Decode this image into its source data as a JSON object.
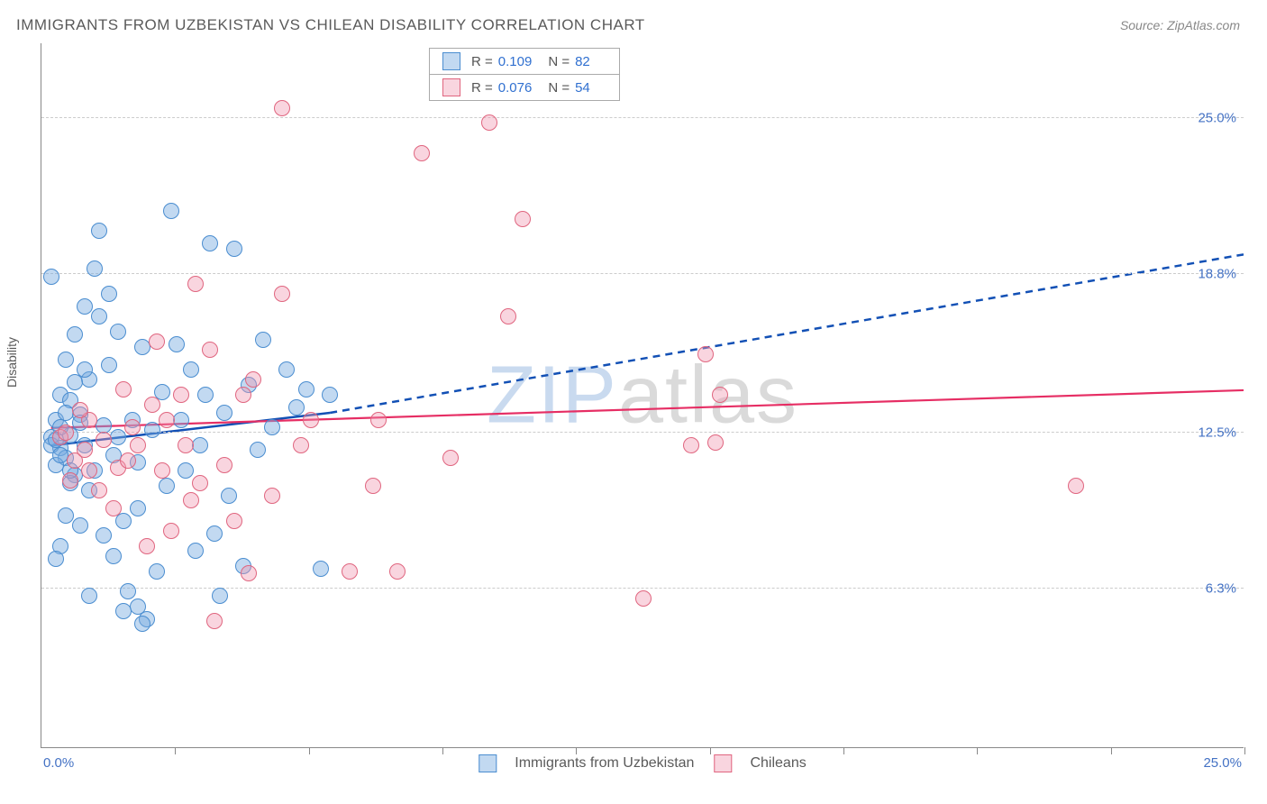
{
  "title": "IMMIGRANTS FROM UZBEKISTAN VS CHILEAN DISABILITY CORRELATION CHART",
  "source": "Source: ZipAtlas.com",
  "watermark_zip": "ZIP",
  "watermark_atlas": "atlas",
  "ylabel": "Disability",
  "chart": {
    "type": "scatter",
    "xlim": [
      0,
      25
    ],
    "ylim": [
      0,
      28
    ],
    "x_axis_min_label": "0.0%",
    "x_axis_max_label": "25.0%",
    "ytick_labels": [
      {
        "value": 6.3,
        "label": "6.3%"
      },
      {
        "value": 12.5,
        "label": "12.5%"
      },
      {
        "value": 18.8,
        "label": "18.8%"
      },
      {
        "value": 25.0,
        "label": "25.0%"
      }
    ],
    "xtick_positions": [
      2.78,
      5.56,
      8.33,
      11.11,
      13.89,
      16.67,
      19.44,
      22.22,
      25.0
    ],
    "background_color": "#ffffff",
    "grid_color": "#cccccc",
    "axis_color": "#888888",
    "marker_radius": 9,
    "marker_stroke_width": 1.2
  },
  "series": [
    {
      "key": "uzbekistan",
      "label": "Immigrants from Uzbekistan",
      "fill": "rgba(120,170,225,0.45)",
      "stroke": "#4a8dd0",
      "trend_color": "#1250b5",
      "trend_width": 2.5,
      "trend_solid": {
        "x1": 0.2,
        "y1": 12.0,
        "x2": 6.0,
        "y2": 13.3
      },
      "trend_dashed": {
        "x1": 6.0,
        "y1": 13.3,
        "x2": 25.0,
        "y2": 19.6
      },
      "R": "0.109",
      "N": "82",
      "points": [
        [
          0.2,
          12.3
        ],
        [
          0.4,
          11.9
        ],
        [
          0.3,
          13.0
        ],
        [
          0.6,
          12.4
        ],
        [
          0.5,
          11.5
        ],
        [
          0.8,
          13.2
        ],
        [
          0.2,
          18.7
        ],
        [
          0.7,
          10.8
        ],
        [
          0.4,
          14.0
        ],
        [
          0.9,
          12.0
        ],
        [
          1.0,
          14.6
        ],
        [
          1.1,
          11.0
        ],
        [
          0.5,
          15.4
        ],
        [
          1.3,
          12.8
        ],
        [
          0.7,
          16.4
        ],
        [
          1.2,
          17.1
        ],
        [
          1.5,
          11.6
        ],
        [
          0.6,
          13.8
        ],
        [
          0.3,
          11.2
        ],
        [
          0.8,
          12.9
        ],
        [
          1.0,
          10.2
        ],
        [
          1.6,
          12.3
        ],
        [
          1.4,
          15.2
        ],
        [
          1.7,
          9.0
        ],
        [
          1.9,
          13.0
        ],
        [
          2.0,
          11.3
        ],
        [
          2.1,
          15.9
        ],
        [
          2.3,
          12.6
        ],
        [
          2.0,
          9.5
        ],
        [
          2.5,
          14.1
        ],
        [
          2.7,
          21.3
        ],
        [
          2.6,
          10.4
        ],
        [
          2.4,
          7.0
        ],
        [
          2.2,
          5.1
        ],
        [
          2.9,
          13.0
        ],
        [
          3.0,
          11.0
        ],
        [
          3.1,
          15.0
        ],
        [
          3.3,
          12.0
        ],
        [
          3.5,
          20.0
        ],
        [
          3.6,
          8.5
        ],
        [
          3.8,
          13.3
        ],
        [
          4.0,
          19.8
        ],
        [
          3.4,
          14.0
        ],
        [
          3.9,
          10.0
        ],
        [
          3.2,
          7.8
        ],
        [
          1.8,
          6.2
        ],
        [
          2.0,
          5.6
        ],
        [
          0.9,
          17.5
        ],
        [
          1.1,
          19.0
        ],
        [
          1.3,
          8.4
        ],
        [
          1.5,
          7.6
        ],
        [
          0.5,
          9.2
        ],
        [
          0.4,
          8.0
        ],
        [
          0.6,
          10.5
        ],
        [
          0.7,
          14.5
        ],
        [
          2.8,
          16.0
        ],
        [
          4.3,
          14.4
        ],
        [
          4.6,
          16.2
        ],
        [
          4.5,
          11.8
        ],
        [
          4.8,
          12.7
        ],
        [
          5.1,
          15.0
        ],
        [
          5.3,
          13.5
        ],
        [
          5.5,
          14.2
        ],
        [
          5.8,
          7.1
        ],
        [
          6.0,
          14.0
        ],
        [
          2.1,
          4.9
        ],
        [
          1.7,
          5.4
        ],
        [
          1.0,
          6.0
        ],
        [
          0.3,
          7.5
        ],
        [
          0.8,
          8.8
        ],
        [
          1.2,
          20.5
        ],
        [
          1.4,
          18.0
        ],
        [
          4.2,
          7.2
        ],
        [
          3.7,
          6.0
        ],
        [
          1.6,
          16.5
        ],
        [
          0.9,
          15.0
        ],
        [
          0.5,
          13.3
        ],
        [
          0.4,
          12.7
        ],
        [
          0.6,
          11.0
        ],
        [
          0.2,
          12.0
        ],
        [
          0.3,
          12.2
        ],
        [
          0.4,
          11.6
        ]
      ]
    },
    {
      "key": "chileans",
      "label": "Chileans",
      "fill": "rgba(240,150,175,0.40)",
      "stroke": "#e0657f",
      "trend_color": "#e62e64",
      "trend_width": 2.2,
      "trend_solid": {
        "x1": 0.2,
        "y1": 12.7,
        "x2": 25.0,
        "y2": 14.2
      },
      "R": "0.076",
      "N": "54",
      "points": [
        [
          0.4,
          12.3
        ],
        [
          0.7,
          11.4
        ],
        [
          1.0,
          13.0
        ],
        [
          1.0,
          11.0
        ],
        [
          1.3,
          12.2
        ],
        [
          1.6,
          11.1
        ],
        [
          0.6,
          10.6
        ],
        [
          2.0,
          12.0
        ],
        [
          1.8,
          11.4
        ],
        [
          2.3,
          13.6
        ],
        [
          2.5,
          11.0
        ],
        [
          2.4,
          16.1
        ],
        [
          2.9,
          14.0
        ],
        [
          3.2,
          18.4
        ],
        [
          3.0,
          12.0
        ],
        [
          3.5,
          15.8
        ],
        [
          3.1,
          9.8
        ],
        [
          3.8,
          11.2
        ],
        [
          4.2,
          14.0
        ],
        [
          4.4,
          14.6
        ],
        [
          5.0,
          25.4
        ],
        [
          5.0,
          18.0
        ],
        [
          4.3,
          6.9
        ],
        [
          4.8,
          10.0
        ],
        [
          5.4,
          12.0
        ],
        [
          5.6,
          13.0
        ],
        [
          6.4,
          7.0
        ],
        [
          6.9,
          10.4
        ],
        [
          7.0,
          13.0
        ],
        [
          7.4,
          7.0
        ],
        [
          7.9,
          23.6
        ],
        [
          8.5,
          11.5
        ],
        [
          9.3,
          24.8
        ],
        [
          9.7,
          17.1
        ],
        [
          10.0,
          21.0
        ],
        [
          12.5,
          5.9
        ],
        [
          13.8,
          15.6
        ],
        [
          14.0,
          12.1
        ],
        [
          14.1,
          14.0
        ],
        [
          13.5,
          12.0
        ],
        [
          21.5,
          10.4
        ],
        [
          3.6,
          5.0
        ],
        [
          2.7,
          8.6
        ],
        [
          2.2,
          8.0
        ],
        [
          1.5,
          9.5
        ],
        [
          1.2,
          10.2
        ],
        [
          0.9,
          11.8
        ],
        [
          0.5,
          12.5
        ],
        [
          1.7,
          14.2
        ],
        [
          3.3,
          10.5
        ],
        [
          4.0,
          9.0
        ],
        [
          2.6,
          13.0
        ],
        [
          1.9,
          12.7
        ],
        [
          0.8,
          13.4
        ]
      ]
    }
  ],
  "stats_legend": {
    "R_label": "R =",
    "N_label": "N ="
  }
}
